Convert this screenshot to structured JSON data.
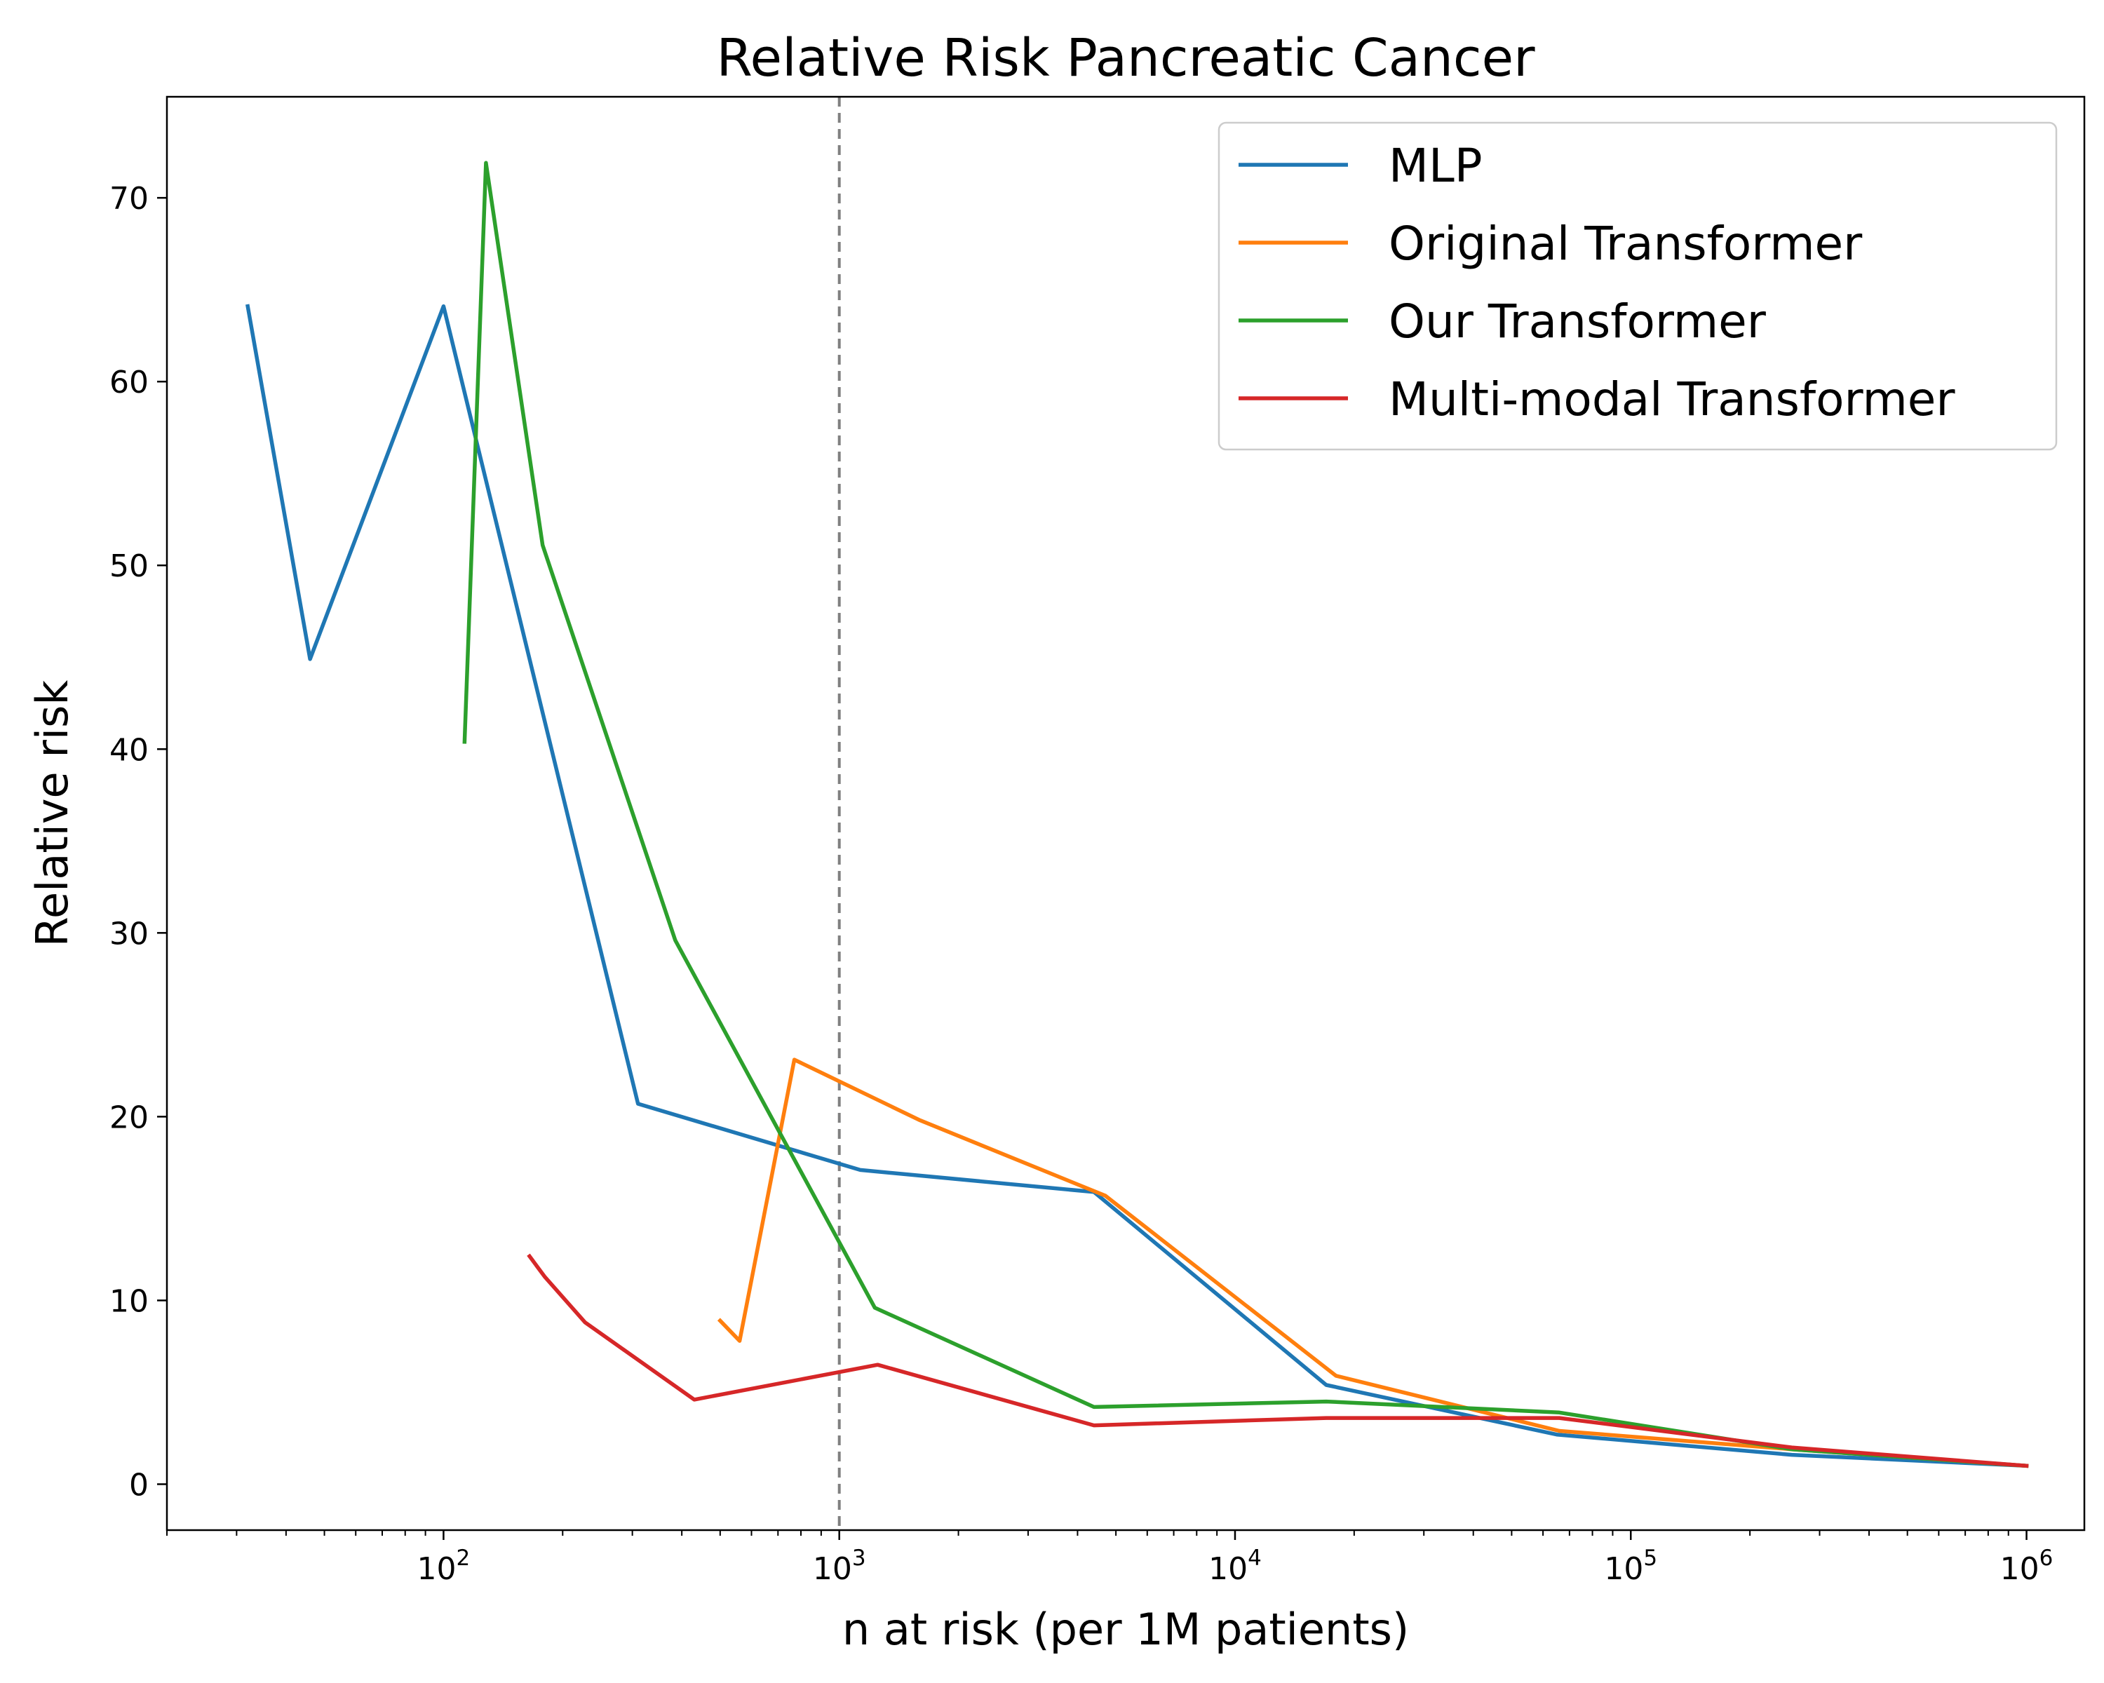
{
  "chart_data": {
    "type": "line",
    "title": "Relative Risk Pancreatic Cancer",
    "xlabel": "n at risk (per 1M patients)",
    "ylabel": "Relative risk",
    "xscale": "log",
    "xlim": [
      20,
      1400000
    ],
    "ylim": [
      -2.5,
      75.5
    ],
    "yticks": [
      0,
      10,
      20,
      30,
      40,
      50,
      60,
      70
    ],
    "xticks": [
      {
        "value": 100,
        "base": "10",
        "exp": "2"
      },
      {
        "value": 1000,
        "base": "10",
        "exp": "3"
      },
      {
        "value": 10000,
        "base": "10",
        "exp": "4"
      },
      {
        "value": 100000,
        "base": "10",
        "exp": "5"
      },
      {
        "value": 1000000,
        "base": "10",
        "exp": "6"
      }
    ],
    "vline": {
      "x": 1000,
      "color": "#808080",
      "style": "dashed"
    },
    "grid": false,
    "legend_position": "top-right",
    "series": [
      {
        "name": "MLP",
        "color": "#1f77b4",
        "x": [
          32,
          46,
          100,
          310,
          1130,
          4400,
          17000,
          65000,
          255000,
          1000000
        ],
        "y": [
          64.1,
          44.9,
          64.1,
          20.7,
          17.1,
          15.9,
          5.4,
          2.7,
          1.6,
          1.0
        ]
      },
      {
        "name": "Original Transformer",
        "color": "#ff7f0e",
        "x": [
          500,
          560,
          770,
          1600,
          4700,
          18000,
          66000,
          255000,
          1000000
        ],
        "y": [
          8.9,
          7.8,
          23.1,
          19.8,
          15.7,
          5.9,
          2.9,
          1.9,
          1.0
        ]
      },
      {
        "name": "Our Transformer",
        "color": "#2ca02c",
        "x": [
          113,
          128,
          178,
          385,
          1230,
          4400,
          17000,
          66000,
          255000,
          1000000
        ],
        "y": [
          40.4,
          71.9,
          51.1,
          29.6,
          9.6,
          4.2,
          4.5,
          3.9,
          1.9,
          1.0
        ]
      },
      {
        "name": "Multi-modal Transformer",
        "color": "#d62728",
        "x": [
          165,
          180,
          228,
          430,
          1250,
          4400,
          17000,
          66000,
          255000,
          1000000
        ],
        "y": [
          12.4,
          11.3,
          8.8,
          4.6,
          6.5,
          3.2,
          3.6,
          3.6,
          2.0,
          1.0
        ]
      }
    ]
  }
}
